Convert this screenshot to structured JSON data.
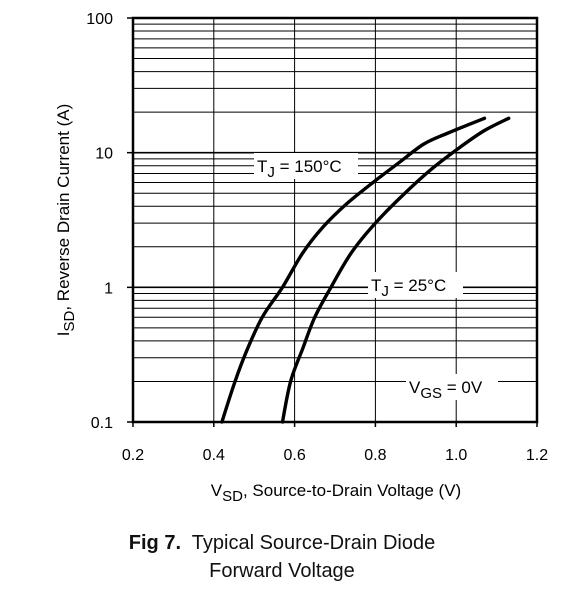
{
  "chart_data": {
    "type": "line",
    "title": "",
    "x_scale": "linear",
    "y_scale": "log",
    "xlim": [
      0.2,
      1.2
    ],
    "ylim": [
      0.1,
      100
    ],
    "grid": true,
    "xticks": [
      "0.2",
      "0.4",
      "0.6",
      "0.8",
      "1.0",
      "1.2"
    ],
    "yticks": [
      "0.1",
      "1",
      "10",
      "100"
    ],
    "xlabel": {
      "main": "V",
      "sub": "SD",
      "rest": ", Source-to-Drain Voltage (V)"
    },
    "ylabel": {
      "main": "I",
      "sub": "SD",
      "rest": ", Reverse Drain Current (A)"
    },
    "series": [
      {
        "name": "TJ = 150°C",
        "label": {
          "main": "T",
          "sub": "J",
          "rest": " = 150°C"
        },
        "points": [
          [
            0.42,
            0.1
          ],
          [
            0.45,
            0.19
          ],
          [
            0.48,
            0.33
          ],
          [
            0.52,
            0.6
          ],
          [
            0.57,
            1.0
          ],
          [
            0.62,
            1.8
          ],
          [
            0.67,
            2.8
          ],
          [
            0.73,
            4.2
          ],
          [
            0.8,
            6.2
          ],
          [
            0.86,
            8.5
          ],
          [
            0.92,
            11.6
          ],
          [
            0.98,
            14.0
          ],
          [
            1.07,
            18.0
          ]
        ]
      },
      {
        "name": "TJ = 25°C",
        "label": {
          "main": "T",
          "sub": "J",
          "rest": " = 25°C"
        },
        "points": [
          [
            0.57,
            0.1
          ],
          [
            0.59,
            0.2
          ],
          [
            0.62,
            0.35
          ],
          [
            0.65,
            0.6
          ],
          [
            0.69,
            1.0
          ],
          [
            0.74,
            1.8
          ],
          [
            0.8,
            3.0
          ],
          [
            0.87,
            4.9
          ],
          [
            0.94,
            7.6
          ],
          [
            1.01,
            11.0
          ],
          [
            1.07,
            14.6
          ],
          [
            1.13,
            18.0
          ]
        ]
      }
    ],
    "annotation": {
      "main": "V",
      "sub": "GS",
      "rest": " = 0V"
    }
  },
  "caption": {
    "fig_label": "Fig 7.",
    "line1": "Typical Source-Drain Diode",
    "line2": "Forward Voltage"
  }
}
